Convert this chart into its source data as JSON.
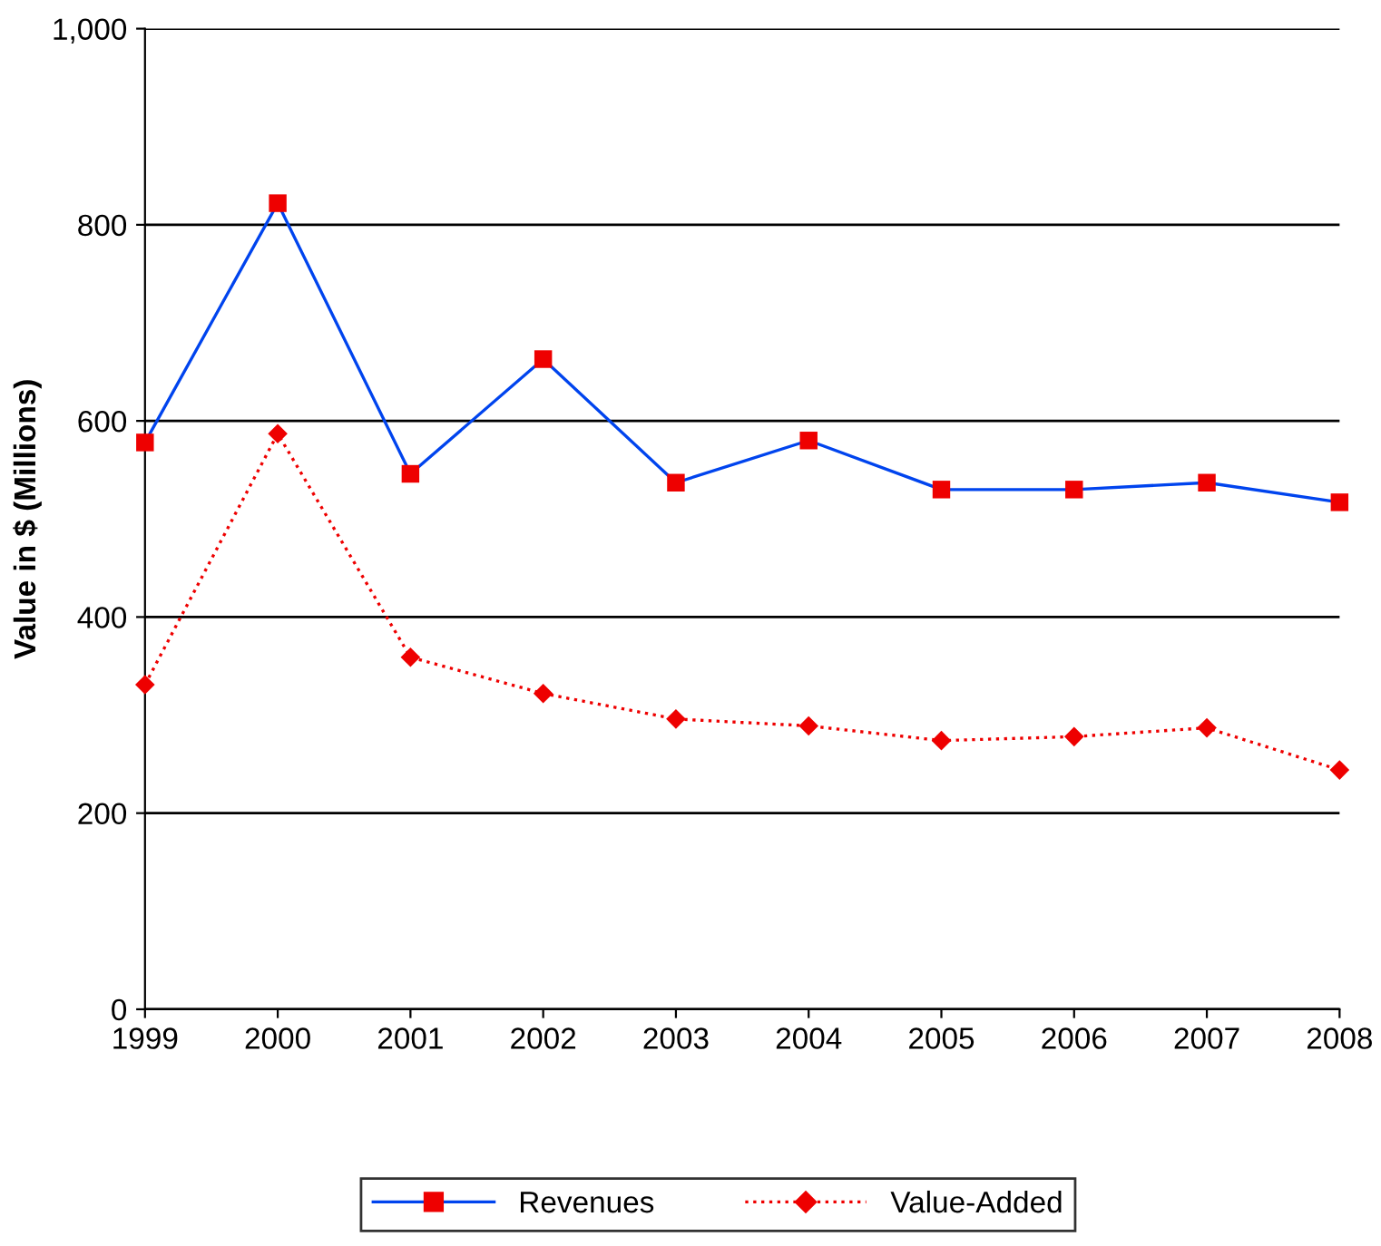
{
  "chart_data": {
    "type": "line",
    "ylabel": "Value in $ (Millions)",
    "x": [
      1999,
      2000,
      2001,
      2002,
      2003,
      2004,
      2005,
      2006,
      2007,
      2008
    ],
    "xlim": [
      1999,
      2008
    ],
    "xticks": [
      1999,
      2000,
      2001,
      2002,
      2003,
      2004,
      2005,
      2006,
      2007,
      2008
    ],
    "ylim": [
      0,
      1000
    ],
    "yticks": [
      0,
      200,
      400,
      600,
      800,
      {
        "value": 1000,
        "label": "1,000"
      }
    ],
    "grid": "y",
    "legend": "bottom",
    "series": [
      {
        "name": "Revenues",
        "color": "#0044ee",
        "marker": "square",
        "line_style": "solid",
        "colors": [
          "#ee0000",
          "#ee0000",
          "#ee0000",
          "#ee0000",
          "#ee0000",
          "#ee0000",
          "#ee0000",
          "#ee0000",
          "#ee0000",
          "#ee0000"
        ],
        "values": [
          578,
          822,
          546,
          663,
          537,
          580,
          530,
          530,
          537,
          517
        ]
      },
      {
        "name": "Value-Added",
        "color": "#ee0000",
        "marker": "diamond",
        "line_style": "dotted",
        "colors": [
          "#ee0000",
          "#ee0000",
          "#ee0000",
          "#ee0000",
          "#ee0000",
          "#ee0000",
          "#ee0000",
          "#ee0000",
          "#ee0000",
          "#ee0000"
        ],
        "values": [
          331,
          587,
          359,
          322,
          296,
          289,
          274,
          278,
          287,
          244
        ]
      }
    ]
  }
}
